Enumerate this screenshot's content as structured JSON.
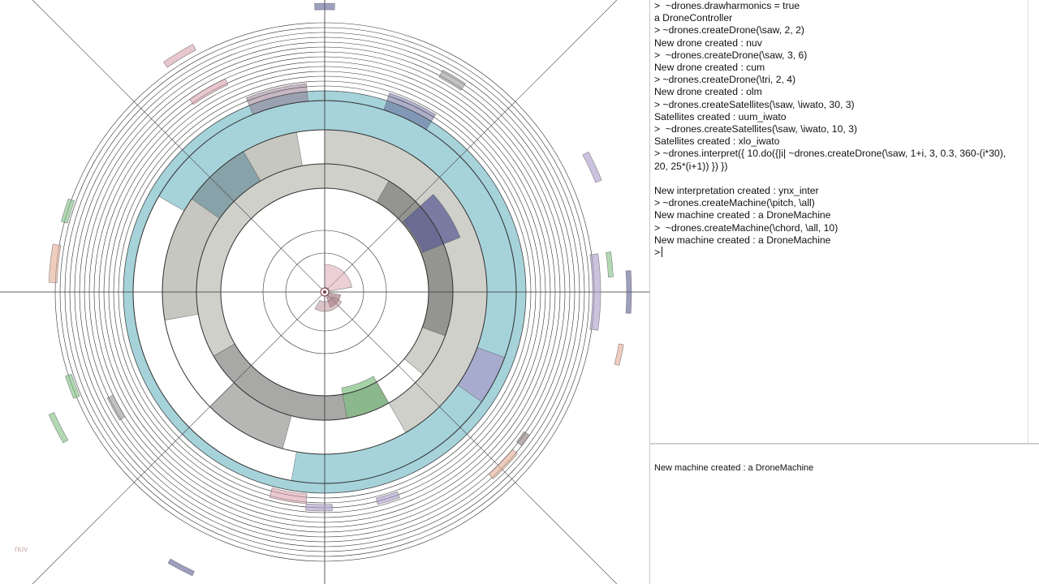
{
  "visualization": {
    "drone_label": "nuv",
    "colors": {
      "teal": "#96cbd4",
      "grey": "#a9a9a0",
      "dark_grey": "#7a7a78",
      "navy": "#5c5f94",
      "green": "#7fbf82",
      "rose": "#d9a1ae",
      "lavender": "#a89ac8",
      "peach": "#e2ab95",
      "ring_line": "#333333"
    }
  },
  "console": {
    "lines": [
      ">  ~drones.drawharmonics = true",
      "a DroneController",
      "> ~drones.createDrone(\\saw, 2, 2)",
      "New drone created : nuv",
      ">  ~drones.createDrone(\\saw, 3, 6)",
      "New drone created : cum",
      "> ~drones.createDrone(\\tri, 2, 4)",
      "New drone created : olm",
      "> ~drones.createSatellites(\\saw, \\iwato, 30, 3)",
      "Satellites created : uum_iwato",
      ">  ~drones.createSatellites(\\saw, \\iwato, 10, 3)",
      "Satellites created : xlo_iwato",
      "> ~drones.interpret({ 10.do({|i| ~drones.createDrone(\\saw, 1+i, 3, 0.3, 360-(i*30),",
      "20, 25*(i+1)) }) })",
      "",
      "New interpretation created : ynx_inter",
      "> ~drones.createMachine(\\pitch, \\all)",
      "New machine created : a DroneMachine",
      ">  ~drones.createMachine(\\chord, \\all, 10)",
      "New machine created : a DroneMachine",
      ">"
    ]
  },
  "post_window": {
    "line": "New machine created : a DroneMachine"
  }
}
